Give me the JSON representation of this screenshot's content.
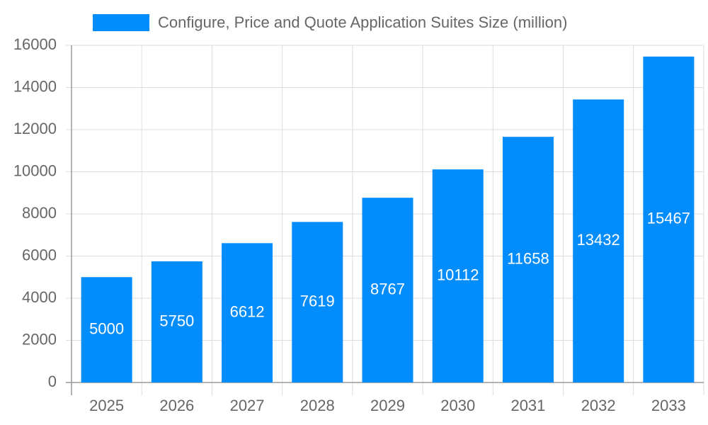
{
  "chart_data": {
    "type": "bar",
    "categories": [
      "2025",
      "2026",
      "2027",
      "2028",
      "2029",
      "2030",
      "2031",
      "2032",
      "2033"
    ],
    "series": [
      {
        "name": "Configure, Price and Quote Application Suites Size (million)",
        "color": "#038cfc",
        "values": [
          5000,
          5750,
          6612,
          7619,
          8767,
          10112,
          11658,
          13432,
          15467
        ]
      }
    ],
    "ylim": [
      0,
      16000
    ],
    "yticks": [
      0,
      2000,
      4000,
      6000,
      8000,
      10000,
      12000,
      14000,
      16000
    ],
    "grid": true,
    "legend": "top",
    "data_labels": true
  }
}
